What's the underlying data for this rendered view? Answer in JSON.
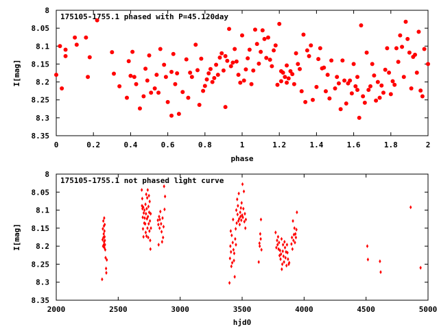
{
  "accent_color": "#ff0000",
  "chart_data": [
    {
      "type": "scatter",
      "title": "175105-1755.1 phased with P=45.120day",
      "xlabel": "phase",
      "ylabel": "I[mag]",
      "xlim": [
        0,
        2
      ],
      "ylim": [
        8,
        8.35
      ],
      "y_inverted": true,
      "xticks": [
        "0",
        "0.2",
        "0.4",
        "0.6",
        "0.8",
        "1",
        "1.2",
        "1.4",
        "1.6",
        "1.8",
        "2"
      ],
      "yticks": [
        "8",
        "8.05",
        "8.1",
        "8.15",
        "8.2",
        "8.25",
        "8.3",
        "8.35"
      ],
      "marker": "filled-circle",
      "color": "#ff0000",
      "points": [
        [
          0.0,
          8.18
        ],
        [
          0.02,
          8.1
        ],
        [
          0.03,
          8.218
        ],
        [
          0.05,
          8.11
        ],
        [
          0.05,
          8.128
        ],
        [
          0.1,
          8.076
        ],
        [
          0.11,
          8.096
        ],
        [
          0.16,
          8.076
        ],
        [
          0.17,
          8.186
        ],
        [
          0.18,
          8.131
        ],
        [
          0.22,
          8.028
        ],
        [
          0.3,
          8.117
        ],
        [
          0.31,
          8.177
        ],
        [
          0.34,
          8.212
        ],
        [
          0.38,
          8.244
        ],
        [
          0.39,
          8.142
        ],
        [
          0.4,
          8.183
        ],
        [
          0.41,
          8.116
        ],
        [
          0.42,
          8.186
        ],
        [
          0.43,
          8.206
        ],
        [
          0.45,
          8.274
        ],
        [
          0.47,
          8.24
        ],
        [
          0.48,
          8.163
        ],
        [
          0.49,
          8.196
        ],
        [
          0.5,
          8.126
        ],
        [
          0.51,
          8.23
        ],
        [
          0.53,
          8.218
        ],
        [
          0.54,
          8.18
        ],
        [
          0.55,
          8.23
        ],
        [
          0.56,
          8.108
        ],
        [
          0.58,
          8.152
        ],
        [
          0.59,
          8.186
        ],
        [
          0.6,
          8.256
        ],
        [
          0.62,
          8.172
        ],
        [
          0.62,
          8.294
        ],
        [
          0.63,
          8.122
        ],
        [
          0.64,
          8.206
        ],
        [
          0.65,
          8.176
        ],
        [
          0.66,
          8.289
        ],
        [
          0.68,
          8.228
        ],
        [
          0.7,
          8.137
        ],
        [
          0.71,
          8.244
        ],
        [
          0.72,
          8.174
        ],
        [
          0.73,
          8.186
        ],
        [
          0.75,
          8.096
        ],
        [
          0.76,
          8.167
        ],
        [
          0.77,
          8.264
        ],
        [
          0.78,
          8.135
        ],
        [
          0.79,
          8.225
        ],
        [
          0.8,
          8.211
        ],
        [
          0.81,
          8.193
        ],
        [
          0.82,
          8.176
        ],
        [
          0.83,
          8.164
        ],
        [
          0.84,
          8.2
        ],
        [
          0.85,
          8.189
        ],
        [
          0.86,
          8.152
        ],
        [
          0.87,
          8.18
        ],
        [
          0.88,
          8.132
        ],
        [
          0.89,
          8.12
        ],
        [
          0.9,
          8.168
        ],
        [
          0.91,
          8.27
        ],
        [
          0.91,
          8.128
        ],
        [
          0.92,
          8.141
        ],
        [
          0.93,
          8.052
        ],
        [
          0.94,
          8.156
        ],
        [
          0.95,
          8.146
        ],
        [
          0.96,
          8.108
        ],
        [
          0.97,
          8.143
        ],
        [
          0.98,
          8.18
        ],
        [
          0.99,
          8.202
        ],
        [
          1.0,
          8.07
        ],
        [
          1.01,
          8.196
        ],
        [
          1.02,
          8.165
        ],
        [
          1.03,
          8.134
        ],
        [
          1.04,
          8.11
        ],
        [
          1.05,
          8.206
        ],
        [
          1.06,
          8.168
        ],
        [
          1.07,
          8.054
        ],
        [
          1.08,
          8.094
        ],
        [
          1.09,
          8.149
        ],
        [
          1.1,
          8.116
        ],
        [
          1.11,
          8.056
        ],
        [
          1.12,
          8.08
        ],
        [
          1.13,
          8.133
        ],
        [
          1.14,
          8.076
        ],
        [
          1.15,
          8.138
        ],
        [
          1.16,
          8.156
        ],
        [
          1.17,
          8.112
        ],
        [
          1.18,
          8.098
        ],
        [
          1.19,
          8.208
        ],
        [
          1.2,
          8.038
        ],
        [
          1.21,
          8.17
        ],
        [
          1.21,
          8.198
        ],
        [
          1.22,
          8.174
        ],
        [
          1.23,
          8.186
        ],
        [
          1.24,
          8.202
        ],
        [
          1.24,
          8.154
        ],
        [
          1.25,
          8.19
        ],
        [
          1.26,
          8.17
        ],
        [
          1.27,
          8.178
        ],
        [
          1.28,
          8.206
        ],
        [
          1.29,
          8.12
        ],
        [
          1.3,
          8.15
        ],
        [
          1.31,
          8.164
        ],
        [
          1.32,
          8.226
        ],
        [
          1.33,
          8.068
        ],
        [
          1.34,
          8.256
        ],
        [
          1.35,
          8.112
        ],
        [
          1.36,
          8.128
        ],
        [
          1.37,
          8.098
        ],
        [
          1.38,
          8.25
        ],
        [
          1.4,
          8.214
        ],
        [
          1.41,
          8.136
        ],
        [
          1.42,
          8.106
        ],
        [
          1.43,
          8.162
        ],
        [
          1.44,
          8.16
        ],
        [
          1.45,
          8.226
        ],
        [
          1.46,
          8.18
        ],
        [
          1.47,
          8.246
        ],
        [
          1.48,
          8.14
        ],
        [
          1.5,
          8.218
        ],
        [
          1.51,
          8.186
        ],
        [
          1.52,
          8.204
        ],
        [
          1.53,
          8.276
        ],
        [
          1.54,
          8.14
        ],
        [
          1.55,
          8.196
        ],
        [
          1.56,
          8.26
        ],
        [
          1.57,
          8.204
        ],
        [
          1.58,
          8.196
        ],
        [
          1.59,
          8.232
        ],
        [
          1.6,
          8.15
        ],
        [
          1.61,
          8.212
        ],
        [
          1.62,
          8.186
        ],
        [
          1.62,
          8.222
        ],
        [
          1.63,
          8.3
        ],
        [
          1.64,
          8.042
        ],
        [
          1.65,
          8.24
        ],
        [
          1.66,
          8.258
        ],
        [
          1.67,
          8.118
        ],
        [
          1.68,
          8.222
        ],
        [
          1.69,
          8.212
        ],
        [
          1.7,
          8.15
        ],
        [
          1.71,
          8.182
        ],
        [
          1.72,
          8.252
        ],
        [
          1.73,
          8.2
        ],
        [
          1.74,
          8.244
        ],
        [
          1.75,
          8.21
        ],
        [
          1.76,
          8.23
        ],
        [
          1.77,
          8.166
        ],
        [
          1.78,
          8.106
        ],
        [
          1.79,
          8.174
        ],
        [
          1.8,
          8.234
        ],
        [
          1.81,
          8.198
        ],
        [
          1.82,
          8.208
        ],
        [
          1.83,
          8.106
        ],
        [
          1.84,
          8.144
        ],
        [
          1.85,
          8.07
        ],
        [
          1.86,
          8.102
        ],
        [
          1.87,
          8.186
        ],
        [
          1.88,
          8.032
        ],
        [
          1.89,
          8.08
        ],
        [
          1.9,
          8.118
        ],
        [
          1.91,
          8.218
        ],
        [
          1.92,
          8.13
        ],
        [
          1.93,
          8.124
        ],
        [
          1.94,
          8.174
        ],
        [
          1.95,
          8.06
        ],
        [
          1.96,
          8.224
        ],
        [
          1.97,
          8.24
        ],
        [
          1.98,
          8.108
        ],
        [
          2.0,
          8.15
        ]
      ]
    },
    {
      "type": "scatter",
      "title": "175105-1755.1 not phased light curve",
      "xlabel": "hjd0",
      "ylabel": "I[mag]",
      "xlim": [
        2000,
        5000
      ],
      "ylim": [
        8,
        8.35
      ],
      "y_inverted": true,
      "xticks": [
        "2000",
        "2500",
        "3000",
        "3500",
        "4000",
        "4500",
        "5000"
      ],
      "yticks": [
        "8",
        "8.05",
        "8.1",
        "8.15",
        "8.2",
        "8.25",
        "8.3",
        "8.35"
      ],
      "marker": "filled-diamond",
      "color": "#ff0000",
      "points": [
        [
          2370,
          8.292
        ],
        [
          2374,
          8.182
        ],
        [
          2376,
          8.152
        ],
        [
          2378,
          8.2
        ],
        [
          2380,
          8.13
        ],
        [
          2381,
          8.176
        ],
        [
          2383,
          8.166
        ],
        [
          2384,
          8.196
        ],
        [
          2385,
          8.144
        ],
        [
          2386,
          8.188
        ],
        [
          2387,
          8.122
        ],
        [
          2388,
          8.204
        ],
        [
          2389,
          8.158
        ],
        [
          2390,
          8.174
        ],
        [
          2391,
          8.14
        ],
        [
          2392,
          8.184
        ],
        [
          2393,
          8.196
        ],
        [
          2395,
          8.21
        ],
        [
          2398,
          8.232
        ],
        [
          2402,
          8.262
        ],
        [
          2404,
          8.274
        ],
        [
          2408,
          8.238
        ],
        [
          2690,
          8.044
        ],
        [
          2692,
          8.088
        ],
        [
          2694,
          8.068
        ],
        [
          2696,
          8.096
        ],
        [
          2698,
          8.12
        ],
        [
          2700,
          8.152
        ],
        [
          2702,
          8.092
        ],
        [
          2704,
          8.174
        ],
        [
          2706,
          8.108
        ],
        [
          2710,
          8.136
        ],
        [
          2712,
          8.1
        ],
        [
          2714,
          8.122
        ],
        [
          2718,
          8.138
        ],
        [
          2720,
          8.084
        ],
        [
          2722,
          8.162
        ],
        [
          2724,
          8.11
        ],
        [
          2726,
          8.056
        ],
        [
          2728,
          8.172
        ],
        [
          2730,
          8.096
        ],
        [
          2732,
          8.124
        ],
        [
          2734,
          8.066
        ],
        [
          2736,
          8.15
        ],
        [
          2738,
          8.044
        ],
        [
          2740,
          8.118
        ],
        [
          2742,
          8.176
        ],
        [
          2744,
          8.09
        ],
        [
          2746,
          8.138
        ],
        [
          2748,
          8.06
        ],
        [
          2750,
          8.106
        ],
        [
          2752,
          8.158
        ],
        [
          2754,
          8.076
        ],
        [
          2756,
          8.13
        ],
        [
          2758,
          8.184
        ],
        [
          2760,
          8.208
        ],
        [
          2762,
          8.11
        ],
        [
          2764,
          8.15
        ],
        [
          2820,
          8.128
        ],
        [
          2824,
          8.14
        ],
        [
          2826,
          8.196
        ],
        [
          2830,
          8.118
        ],
        [
          2834,
          8.15
        ],
        [
          2836,
          8.126
        ],
        [
          2840,
          8.104
        ],
        [
          2846,
          8.138
        ],
        [
          2850,
          8.16
        ],
        [
          2854,
          8.188
        ],
        [
          2858,
          8.122
        ],
        [
          2862,
          8.176
        ],
        [
          2866,
          8.146
        ],
        [
          2870,
          8.034
        ],
        [
          2874,
          8.098
        ],
        [
          2878,
          8.062
        ],
        [
          3398,
          8.302
        ],
        [
          3402,
          8.234
        ],
        [
          3405,
          8.2
        ],
        [
          3408,
          8.158
        ],
        [
          3410,
          8.216
        ],
        [
          3413,
          8.256
        ],
        [
          3416,
          8.17
        ],
        [
          3420,
          8.246
        ],
        [
          3424,
          8.19
        ],
        [
          3427,
          8.126
        ],
        [
          3430,
          8.21
        ],
        [
          3434,
          8.24
        ],
        [
          3436,
          8.22
        ],
        [
          3440,
          8.285
        ],
        [
          3444,
          8.18
        ],
        [
          3448,
          8.152
        ],
        [
          3450,
          8.196
        ],
        [
          3453,
          8.1
        ],
        [
          3456,
          8.136
        ],
        [
          3460,
          8.07
        ],
        [
          3463,
          8.112
        ],
        [
          3466,
          8.088
        ],
        [
          3470,
          8.13
        ],
        [
          3473,
          8.054
        ],
        [
          3476,
          8.124
        ],
        [
          3480,
          8.14
        ],
        [
          3484,
          8.106
        ],
        [
          3487,
          8.118
        ],
        [
          3490,
          8.094
        ],
        [
          3493,
          8.128
        ],
        [
          3496,
          8.08
        ],
        [
          3500,
          8.114
        ],
        [
          3503,
          8.028
        ],
        [
          3506,
          8.12
        ],
        [
          3510,
          8.096
        ],
        [
          3514,
          8.048
        ],
        [
          3518,
          8.132
        ],
        [
          3522,
          8.11
        ],
        [
          3526,
          8.15
        ],
        [
          3530,
          8.126
        ],
        [
          3634,
          8.244
        ],
        [
          3640,
          8.192
        ],
        [
          3642,
          8.2
        ],
        [
          3646,
          8.166
        ],
        [
          3650,
          8.18
        ],
        [
          3652,
          8.126
        ],
        [
          3656,
          8.21
        ],
        [
          3770,
          8.162
        ],
        [
          3776,
          8.204
        ],
        [
          3782,
          8.184
        ],
        [
          3786,
          8.196
        ],
        [
          3790,
          8.174
        ],
        [
          3794,
          8.208
        ],
        [
          3798,
          8.19
        ],
        [
          3802,
          8.226
        ],
        [
          3806,
          8.212
        ],
        [
          3810,
          8.236
        ],
        [
          3814,
          8.222
        ],
        [
          3818,
          8.18
        ],
        [
          3820,
          8.264
        ],
        [
          3824,
          8.25
        ],
        [
          3828,
          8.214
        ],
        [
          3830,
          8.196
        ],
        [
          3834,
          8.228
        ],
        [
          3838,
          8.244
        ],
        [
          3842,
          8.188
        ],
        [
          3846,
          8.204
        ],
        [
          3850,
          8.232
        ],
        [
          3854,
          8.216
        ],
        [
          3858,
          8.254
        ],
        [
          3862,
          8.196
        ],
        [
          3866,
          8.218
        ],
        [
          3870,
          8.236
        ],
        [
          3876,
          8.25
        ],
        [
          3880,
          8.246
        ],
        [
          3898,
          8.194
        ],
        [
          3902,
          8.176
        ],
        [
          3906,
          8.208
        ],
        [
          3910,
          8.13
        ],
        [
          3914,
          8.184
        ],
        [
          3918,
          8.168
        ],
        [
          3922,
          8.15
        ],
        [
          3926,
          8.19
        ],
        [
          3930,
          8.166
        ],
        [
          3934,
          8.176
        ],
        [
          3938,
          8.154
        ],
        [
          3942,
          8.106
        ],
        [
          4510,
          8.2
        ],
        [
          4515,
          8.237
        ],
        [
          4612,
          8.242
        ],
        [
          4618,
          8.272
        ],
        [
          4860,
          8.092
        ],
        [
          4940,
          8.26
        ]
      ]
    }
  ]
}
